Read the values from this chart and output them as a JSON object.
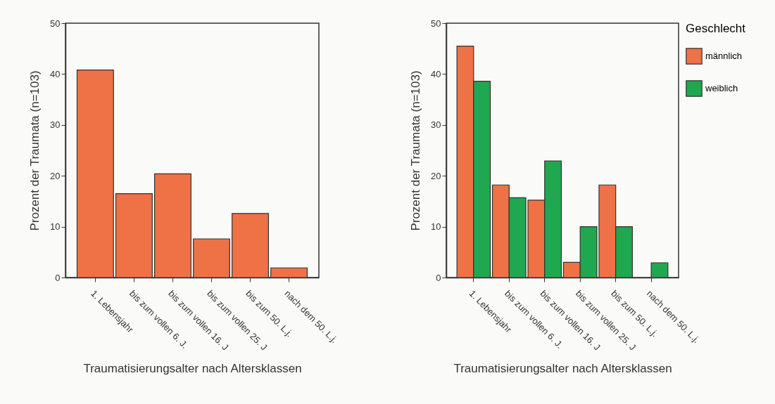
{
  "chart_data": [
    {
      "type": "bar",
      "xlabel": "Traumatisierungsalter nach Altersklassen",
      "ylabel": "Prozent der Traumata (n=103)",
      "categories": [
        "1. Lebensjahr",
        "bis zum vollen 6. J.",
        "bis zum vollen 16. J",
        "bis zum vollen 25. J",
        "bis zum 50. L.j.",
        "nach dem 50. L.j."
      ],
      "values": [
        40.8,
        16.5,
        20.4,
        7.6,
        12.6,
        1.9
      ],
      "color": "#ee7245",
      "ylim": [
        0,
        50
      ],
      "yticks": [
        0,
        10,
        20,
        30,
        40,
        50
      ]
    },
    {
      "type": "bar",
      "xlabel": "Traumatisierungsalter nach Altersklassen",
      "ylabel": "Prozent der Traumata (n=103)",
      "categories": [
        "1. Lebensjahr",
        "bis zum vollen 6. J.",
        "bis zum vollen 16. J",
        "bis zum vollen 25. J",
        "bis zum 50. L.j.",
        "nach dem 50. L.j."
      ],
      "series": [
        {
          "name": "männlich",
          "color": "#ee7245",
          "values": [
            45.5,
            18.2,
            15.2,
            3.0,
            18.2,
            0
          ]
        },
        {
          "name": "weiblich",
          "color": "#1fa84f",
          "values": [
            38.6,
            15.7,
            22.9,
            10.0,
            10.0,
            2.9
          ]
        }
      ],
      "legend_title": "Geschlecht",
      "legend": "right",
      "ylim": [
        0,
        50
      ],
      "yticks": [
        0,
        10,
        20,
        30,
        40,
        50
      ]
    }
  ]
}
